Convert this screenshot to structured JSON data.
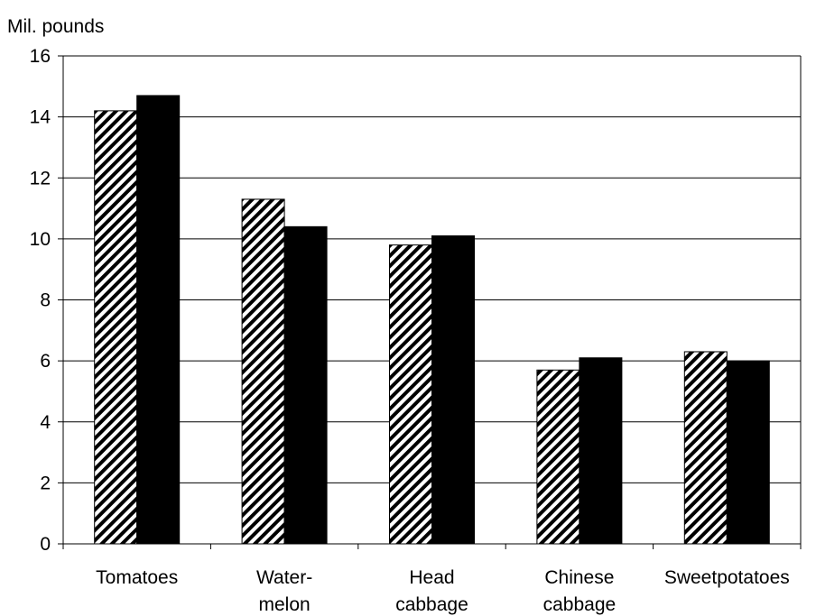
{
  "chart_data": {
    "type": "bar",
    "title": "",
    "xlabel": "",
    "ylabel": "Mil. pounds",
    "ylim": [
      0,
      16
    ],
    "yticks": [
      0,
      2,
      4,
      6,
      8,
      10,
      12,
      14,
      16
    ],
    "categories": [
      [
        "Tomatoes"
      ],
      [
        "Water-",
        "melon"
      ],
      [
        "Head",
        "cabbage"
      ],
      [
        "Chinese",
        "cabbage"
      ],
      [
        "Sweetpotatoes"
      ]
    ],
    "series": [
      {
        "values": [
          14.2,
          11.3,
          9.8,
          5.7,
          6.3
        ],
        "fill": "hatched"
      },
      {
        "values": [
          14.7,
          10.4,
          10.1,
          6.1,
          6.0
        ],
        "fill": "#000000"
      }
    ],
    "grid": true,
    "legend": "none"
  }
}
